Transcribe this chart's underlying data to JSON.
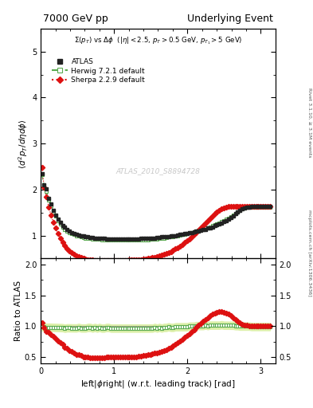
{
  "title_left": "7000 GeV pp",
  "title_right": "Underlying Event",
  "ylabel_main": "$\\langle d^2 p_T / d\\eta d\\phi \\rangle$",
  "ylabel_ratio": "Ratio to ATLAS",
  "xlabel": "left|$\\phi$right| (w.r.t. leading track) [rad]",
  "annotation": "$\\Sigma(p_T)$ vs $\\Delta\\phi$  ($|\\eta| < 2.5$, $p_T > 0.5$ GeV, $p_{T_1} > 5$ GeV)",
  "watermark": "ATLAS_2010_S8894728",
  "side_label_top": "Rivet 3.1.10, ≥ 3.1M events",
  "side_label_bottom": "mcplots.cern.ch [arXiv:1306.3436]",
  "ylim_main": [
    0.5,
    5.5
  ],
  "ylim_ratio": [
    0.4,
    2.1
  ],
  "xlim": [
    0.0,
    3.2
  ],
  "yticks_main": [
    1,
    2,
    3,
    4,
    5
  ],
  "yticks_ratio": [
    0.5,
    1.0,
    1.5,
    2.0
  ],
  "xticks": [
    0,
    1,
    2,
    3
  ],
  "atlas_x": [
    0.016,
    0.047,
    0.079,
    0.11,
    0.141,
    0.173,
    0.204,
    0.236,
    0.267,
    0.298,
    0.33,
    0.361,
    0.393,
    0.424,
    0.455,
    0.487,
    0.518,
    0.55,
    0.581,
    0.612,
    0.644,
    0.675,
    0.707,
    0.738,
    0.769,
    0.801,
    0.832,
    0.864,
    0.895,
    0.927,
    0.958,
    0.99,
    1.021,
    1.052,
    1.084,
    1.115,
    1.147,
    1.178,
    1.209,
    1.241,
    1.272,
    1.304,
    1.335,
    1.366,
    1.398,
    1.429,
    1.461,
    1.492,
    1.524,
    1.555,
    1.586,
    1.618,
    1.649,
    1.681,
    1.712,
    1.743,
    1.775,
    1.806,
    1.838,
    1.869,
    1.9,
    1.932,
    1.963,
    1.995,
    2.026,
    2.058,
    2.089,
    2.12,
    2.152,
    2.183,
    2.215,
    2.246,
    2.277,
    2.309,
    2.34,
    2.372,
    2.403,
    2.434,
    2.466,
    2.497,
    2.529,
    2.56,
    2.591,
    2.623,
    2.654,
    2.686,
    2.717,
    2.749,
    2.78,
    2.811,
    2.843,
    2.874,
    2.906,
    2.937,
    2.968,
    3.0,
    3.031,
    3.063,
    3.094,
    3.126
  ],
  "atlas_y": [
    2.35,
    2.1,
    2.01,
    1.8,
    1.68,
    1.55,
    1.45,
    1.36,
    1.28,
    1.22,
    1.18,
    1.13,
    1.1,
    1.07,
    1.05,
    1.03,
    1.01,
    1.0,
    0.99,
    0.98,
    0.97,
    0.96,
    0.96,
    0.95,
    0.95,
    0.94,
    0.94,
    0.94,
    0.93,
    0.93,
    0.93,
    0.93,
    0.93,
    0.93,
    0.93,
    0.93,
    0.93,
    0.93,
    0.93,
    0.93,
    0.93,
    0.93,
    0.93,
    0.94,
    0.94,
    0.94,
    0.94,
    0.95,
    0.95,
    0.95,
    0.96,
    0.96,
    0.97,
    0.97,
    0.98,
    0.98,
    0.99,
    1.0,
    1.0,
    1.01,
    1.02,
    1.03,
    1.04,
    1.05,
    1.06,
    1.07,
    1.08,
    1.09,
    1.1,
    1.12,
    1.13,
    1.14,
    1.16,
    1.17,
    1.19,
    1.21,
    1.23,
    1.25,
    1.27,
    1.3,
    1.33,
    1.36,
    1.39,
    1.43,
    1.47,
    1.51,
    1.55,
    1.58,
    1.6,
    1.61,
    1.62,
    1.63,
    1.63,
    1.63,
    1.63,
    1.63,
    1.63,
    1.63,
    1.63,
    1.63
  ],
  "herwig_x": [
    0.016,
    0.047,
    0.079,
    0.11,
    0.141,
    0.173,
    0.204,
    0.236,
    0.267,
    0.298,
    0.33,
    0.361,
    0.393,
    0.424,
    0.455,
    0.487,
    0.518,
    0.55,
    0.581,
    0.612,
    0.644,
    0.675,
    0.707,
    0.738,
    0.769,
    0.801,
    0.832,
    0.864,
    0.895,
    0.927,
    0.958,
    0.99,
    1.021,
    1.052,
    1.084,
    1.115,
    1.147,
    1.178,
    1.209,
    1.241,
    1.272,
    1.304,
    1.335,
    1.366,
    1.398,
    1.429,
    1.461,
    1.492,
    1.524,
    1.555,
    1.586,
    1.618,
    1.649,
    1.681,
    1.712,
    1.743,
    1.775,
    1.806,
    1.838,
    1.869,
    1.9,
    1.932,
    1.963,
    1.995,
    2.026,
    2.058,
    2.089,
    2.12,
    2.152,
    2.183,
    2.215,
    2.246,
    2.277,
    2.309,
    2.34,
    2.372,
    2.403,
    2.434,
    2.466,
    2.497,
    2.529,
    2.56,
    2.591,
    2.623,
    2.654,
    2.686,
    2.717,
    2.749,
    2.78,
    2.811,
    2.843,
    2.874,
    2.906,
    2.937,
    2.968,
    3.0,
    3.031,
    3.063,
    3.094,
    3.126
  ],
  "herwig_y": [
    2.32,
    2.08,
    1.97,
    1.77,
    1.65,
    1.52,
    1.42,
    1.33,
    1.25,
    1.19,
    1.14,
    1.1,
    1.07,
    1.04,
    1.02,
    1.0,
    0.99,
    0.97,
    0.96,
    0.95,
    0.95,
    0.94,
    0.93,
    0.93,
    0.92,
    0.92,
    0.91,
    0.91,
    0.91,
    0.91,
    0.9,
    0.9,
    0.9,
    0.9,
    0.9,
    0.9,
    0.9,
    0.9,
    0.9,
    0.9,
    0.9,
    0.9,
    0.9,
    0.91,
    0.91,
    0.91,
    0.91,
    0.92,
    0.92,
    0.93,
    0.93,
    0.94,
    0.94,
    0.95,
    0.96,
    0.97,
    0.97,
    0.98,
    0.99,
    1.0,
    1.01,
    1.02,
    1.03,
    1.04,
    1.06,
    1.07,
    1.08,
    1.1,
    1.11,
    1.13,
    1.14,
    1.16,
    1.17,
    1.19,
    1.21,
    1.23,
    1.25,
    1.27,
    1.3,
    1.32,
    1.35,
    1.38,
    1.41,
    1.45,
    1.48,
    1.52,
    1.55,
    1.58,
    1.6,
    1.61,
    1.62,
    1.62,
    1.62,
    1.62,
    1.62,
    1.62,
    1.62,
    1.62,
    1.62,
    1.62
  ],
  "sherpa_x": [
    0.016,
    0.047,
    0.079,
    0.11,
    0.141,
    0.173,
    0.204,
    0.236,
    0.267,
    0.298,
    0.33,
    0.361,
    0.393,
    0.424,
    0.455,
    0.487,
    0.518,
    0.55,
    0.581,
    0.612,
    0.644,
    0.675,
    0.707,
    0.738,
    0.769,
    0.801,
    0.832,
    0.864,
    0.895,
    0.927,
    0.958,
    0.99,
    1.021,
    1.052,
    1.084,
    1.115,
    1.147,
    1.178,
    1.209,
    1.241,
    1.272,
    1.304,
    1.335,
    1.366,
    1.398,
    1.429,
    1.461,
    1.492,
    1.524,
    1.555,
    1.586,
    1.618,
    1.649,
    1.681,
    1.712,
    1.743,
    1.775,
    1.806,
    1.838,
    1.869,
    1.9,
    1.932,
    1.963,
    1.995,
    2.026,
    2.058,
    2.089,
    2.12,
    2.152,
    2.183,
    2.215,
    2.246,
    2.277,
    2.309,
    2.34,
    2.372,
    2.403,
    2.434,
    2.466,
    2.497,
    2.529,
    2.56,
    2.591,
    2.623,
    2.654,
    2.686,
    2.717,
    2.749,
    2.78,
    2.811,
    2.843,
    2.874,
    2.906,
    2.937,
    2.968,
    3.0,
    3.031,
    3.063,
    3.094,
    3.126
  ],
  "sherpa_y": [
    2.48,
    2.05,
    1.85,
    1.62,
    1.44,
    1.29,
    1.16,
    1.04,
    0.94,
    0.86,
    0.78,
    0.72,
    0.67,
    0.63,
    0.59,
    0.56,
    0.54,
    0.52,
    0.5,
    0.49,
    0.48,
    0.47,
    0.47,
    0.46,
    0.46,
    0.46,
    0.46,
    0.46,
    0.46,
    0.46,
    0.46,
    0.46,
    0.46,
    0.46,
    0.46,
    0.46,
    0.46,
    0.46,
    0.47,
    0.47,
    0.47,
    0.47,
    0.48,
    0.48,
    0.49,
    0.49,
    0.5,
    0.51,
    0.52,
    0.53,
    0.54,
    0.56,
    0.57,
    0.59,
    0.61,
    0.63,
    0.65,
    0.68,
    0.71,
    0.74,
    0.77,
    0.81,
    0.85,
    0.89,
    0.93,
    0.98,
    1.02,
    1.07,
    1.12,
    1.17,
    1.22,
    1.27,
    1.32,
    1.37,
    1.42,
    1.47,
    1.51,
    1.55,
    1.58,
    1.6,
    1.62,
    1.63,
    1.63,
    1.63,
    1.63,
    1.63,
    1.63,
    1.63,
    1.63,
    1.63,
    1.63,
    1.63,
    1.63,
    1.63,
    1.63,
    1.63,
    1.63,
    1.63,
    1.63,
    1.63
  ],
  "atlas_color": "#222222",
  "herwig_color": "#5aaa50",
  "sherpa_color": "#dd1111",
  "herwig_band_color": "#ddf0aa",
  "bg_color": "#ffffff"
}
